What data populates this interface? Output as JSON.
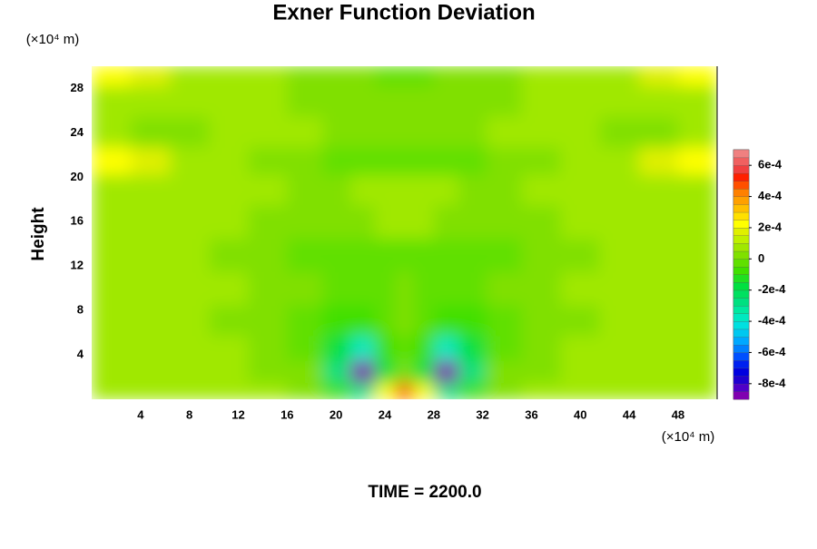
{
  "chart_data": {
    "type": "contour",
    "title": "Exner Function Deviation",
    "ylabel": "Height",
    "x_unit": "(×10⁴ m)",
    "y_unit": "(×10⁴ m)",
    "footer": "TIME = 2200.0",
    "xlim": [
      0,
      51.2
    ],
    "ylim": [
      0,
      30
    ],
    "xticks": [
      4,
      8,
      12,
      16,
      20,
      24,
      28,
      32,
      36,
      40,
      44,
      48
    ],
    "yticks": [
      4,
      8,
      12,
      16,
      20,
      24,
      28
    ],
    "x": [
      1.6,
      4.8,
      8,
      11.2,
      14.4,
      17.6,
      20.2,
      22.2,
      24.2,
      25.6,
      27,
      29,
      31,
      33.6,
      36.8,
      40,
      43.2,
      46.4,
      49.6
    ],
    "y": [
      0.5,
      2.5,
      4.5,
      7,
      10,
      13,
      16,
      19,
      21.5,
      24,
      27,
      29.5
    ],
    "z": [
      [
        7e-05,
        7e-05,
        7e-05,
        6e-05,
        5e-05,
        3e-05,
        -0.0001,
        -0.0003,
        0.0002,
        0.0005,
        0.0002,
        -0.0003,
        -0.0001,
        3e-05,
        5e-05,
        6e-05,
        7e-05,
        7e-05,
        7e-05
      ],
      [
        7e-05,
        7e-05,
        7e-05,
        6e-05,
        4e-05,
        0,
        -0.0003,
        -0.0009,
        -0.0002,
        0,
        -0.0002,
        -0.0009,
        -0.0003,
        0,
        4e-05,
        6e-05,
        7e-05,
        7e-05,
        7e-05
      ],
      [
        7e-05,
        7e-05,
        6e-05,
        5e-05,
        3e-05,
        -3e-05,
        -0.0002,
        -0.0004,
        -0.0001,
        -3e-05,
        -0.0001,
        -0.0004,
        -0.0002,
        -3e-05,
        3e-05,
        5e-05,
        6e-05,
        7e-05,
        7e-05
      ],
      [
        7e-05,
        7e-05,
        6e-05,
        4e-05,
        2e-05,
        -2e-05,
        -8e-05,
        -0.0001,
        -5e-05,
        0,
        -5e-05,
        -0.0001,
        -8e-05,
        -2e-05,
        2e-05,
        4e-05,
        6e-05,
        7e-05,
        7e-05
      ],
      [
        6e-05,
        6e-05,
        6e-05,
        5e-05,
        3e-05,
        0,
        -3e-05,
        -4e-05,
        -2e-05,
        3e-05,
        -2e-05,
        -4e-05,
        -3e-05,
        0,
        3e-05,
        5e-05,
        6e-05,
        6e-05,
        6e-05
      ],
      [
        6e-05,
        6e-05,
        5e-05,
        3e-05,
        1e-05,
        -2e-05,
        -4e-05,
        -4e-05,
        -3e-05,
        -2e-05,
        -3e-05,
        -4e-05,
        -4e-05,
        -2e-05,
        1e-05,
        3e-05,
        5e-05,
        6e-05,
        6e-05
      ],
      [
        6e-05,
        6e-05,
        6e-05,
        5e-05,
        4e-05,
        1e-05,
        1e-05,
        3e-05,
        6e-05,
        8e-05,
        6e-05,
        3e-05,
        1e-05,
        1e-05,
        4e-05,
        5e-05,
        6e-05,
        6e-05,
        6e-05
      ],
      [
        8e-05,
        8e-05,
        6e-05,
        5e-05,
        5e-05,
        4e-05,
        4e-05,
        5e-05,
        6e-05,
        6e-05,
        6e-05,
        5e-05,
        4e-05,
        4e-05,
        5e-05,
        5e-05,
        6e-05,
        8e-05,
        8e-05
      ],
      [
        0.0002,
        0.00015,
        8e-05,
        5e-05,
        3e-05,
        0,
        -2e-05,
        -4e-05,
        -5e-05,
        -5e-05,
        -5e-05,
        -4e-05,
        -2e-05,
        0,
        3e-05,
        5e-05,
        8e-05,
        0.00015,
        0.0002
      ],
      [
        5e-05,
        3e-05,
        4e-05,
        5e-05,
        6e-05,
        5e-05,
        3e-05,
        2e-05,
        1e-05,
        1e-05,
        1e-05,
        2e-05,
        3e-05,
        5e-05,
        6e-05,
        5e-05,
        4e-05,
        3e-05,
        5e-05
      ],
      [
        8e-05,
        6e-05,
        6e-05,
        8e-05,
        7e-05,
        4e-05,
        2e-05,
        1e-05,
        0,
        0,
        0,
        1e-05,
        2e-05,
        4e-05,
        7e-05,
        8e-05,
        6e-05,
        6e-05,
        8e-05
      ],
      [
        0.0002,
        0.00015,
        8e-05,
        8e-05,
        7e-05,
        4e-05,
        2e-05,
        0,
        -3e-05,
        -3e-05,
        -3e-05,
        0,
        2e-05,
        4e-05,
        7e-05,
        8e-05,
        8e-05,
        0.00015,
        0.0002
      ]
    ],
    "colorbar": {
      "zlim": [
        -0.0009,
        0.0007
      ],
      "ticks": [
        {
          "value": 0.0006,
          "label": "6e-4"
        },
        {
          "value": 0.0004,
          "label": "4e-4"
        },
        {
          "value": 0.0002,
          "label": "2e-4"
        },
        0,
        {
          "value": -0.0002,
          "label": "-2e-4"
        },
        {
          "value": -0.0004,
          "label": "-4e-4"
        },
        {
          "value": -0.0006,
          "label": "-6e-4"
        },
        {
          "value": -0.0008,
          "label": "-8e-4"
        }
      ],
      "colors": [
        "#8000b0",
        "#5000c8",
        "#2000d0",
        "#0000e0",
        "#0020f0",
        "#0050ff",
        "#0080ff",
        "#00a8ff",
        "#00c8f0",
        "#00e0e0",
        "#00e8c0",
        "#00e8a0",
        "#00e080",
        "#00e060",
        "#00e040",
        "#20e020",
        "#40e000",
        "#60e000",
        "#80e000",
        "#a0e800",
        "#c0f000",
        "#e0f000",
        "#ffff00",
        "#ffe000",
        "#ffc000",
        "#ffa000",
        "#ff8000",
        "#ff5000",
        "#ff2000",
        "#f04040",
        "#f06060",
        "#f08080"
      ]
    }
  }
}
